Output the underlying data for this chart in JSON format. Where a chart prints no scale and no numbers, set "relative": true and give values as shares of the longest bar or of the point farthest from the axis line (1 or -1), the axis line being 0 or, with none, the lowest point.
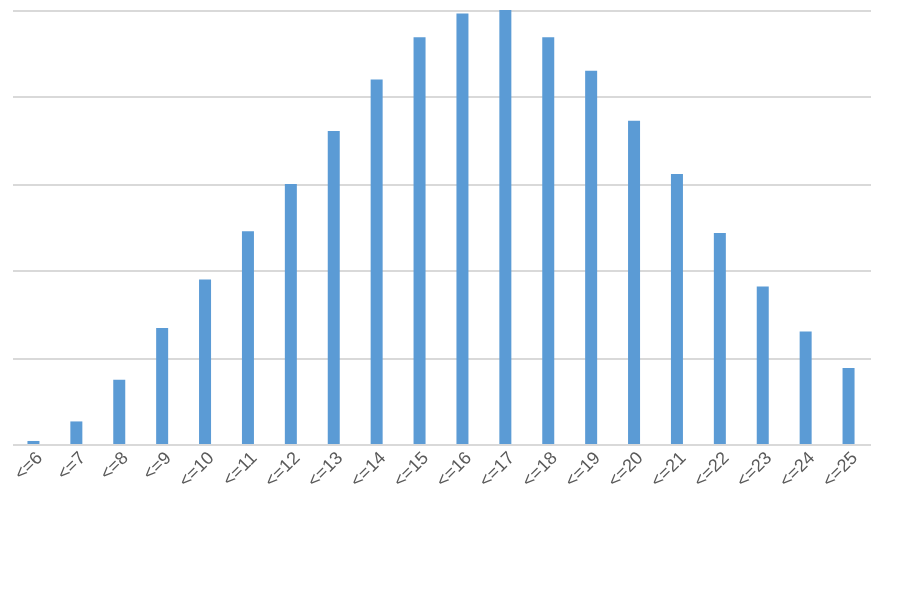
{
  "chart_data": {
    "type": "bar",
    "relative": true,
    "grid": "y",
    "color": "#5b9bd5",
    "categories": [
      "<=6",
      "<=7",
      "<=8",
      "<=9",
      "<=10",
      "<=11",
      "<=12",
      "<=13",
      "<=14",
      "<=15",
      "<=16",
      "<=17",
      "<=18",
      "<=19",
      "<=20",
      "<=21",
      "<=22",
      "<=23",
      "<=24",
      "<=25"
    ],
    "values": [
      0.007,
      0.052,
      0.148,
      0.267,
      0.379,
      0.49,
      0.599,
      0.721,
      0.84,
      0.937,
      0.992,
      1,
      0.937,
      0.86,
      0.745,
      0.622,
      0.486,
      0.363,
      0.259,
      0.175
    ]
  }
}
